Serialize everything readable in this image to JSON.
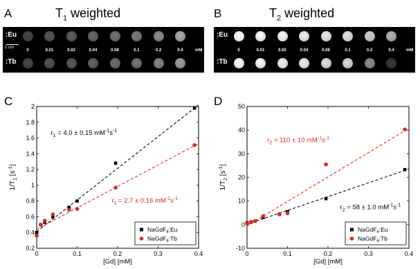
{
  "panels": {
    "A": {
      "letter": "A",
      "title_main": "T",
      "title_sub": "1",
      "title_rest": " weighted"
    },
    "B": {
      "letter": "B",
      "title_main": "T",
      "title_sub": "2",
      "title_rest": " weighted"
    },
    "C": {
      "letter": "C"
    },
    "D": {
      "letter": "D"
    }
  },
  "strip": {
    "row_labels": [
      ":Eu",
      ":Tb"
    ],
    "scale_label": "1 cm",
    "concentrations": [
      "0",
      "0.01",
      "0.02",
      "0.04",
      "0.08",
      "0.1",
      "0.2",
      "0.4"
    ],
    "unit": "mM",
    "t1_brightness": {
      "eu": [
        0.28,
        0.33,
        0.36,
        0.4,
        0.45,
        0.48,
        0.55,
        0.68
      ],
      "tb": [
        0.28,
        0.32,
        0.35,
        0.39,
        0.43,
        0.46,
        0.52,
        0.62
      ]
    },
    "t2_brightness": {
      "eu": [
        1.0,
        1.0,
        0.97,
        0.95,
        0.92,
        0.9,
        0.82,
        0.7
      ],
      "tb": [
        1.0,
        0.98,
        0.95,
        0.93,
        0.88,
        0.85,
        0.55,
        0.22
      ]
    }
  },
  "chart_data": [
    {
      "id": "C",
      "type": "scatter",
      "xlabel": "[Gd] [mM]",
      "ylabel_main": "1/T",
      "ylabel_sub": "1",
      "ylabel_unit": " [s",
      "ylabel_sup": "-1",
      "ylabel_end": "]",
      "xlim": [
        0,
        0.4
      ],
      "ylim": [
        0.2,
        2.0
      ],
      "xticks": [
        "0",
        "0.1",
        "0.2",
        "0.3",
        "0.4"
      ],
      "xtick_values": [
        0,
        0.1,
        0.2,
        0.3,
        0.4
      ],
      "yticks": [
        "0.2",
        "0.4",
        "0.6",
        "0.8",
        "1",
        "1.2",
        "1.4",
        "1.6",
        "1.8",
        "2"
      ],
      "ytick_values": [
        0.2,
        0.4,
        0.6,
        0.8,
        1.0,
        1.2,
        1.4,
        1.6,
        1.8,
        2.0
      ],
      "legend_position": "bottom-right",
      "series": [
        {
          "name": "NaGdF4:Eu",
          "name_base": "NaGdF",
          "name_sub": "4",
          "name_rest": ":Eu",
          "color": "#000000",
          "marker": "square",
          "x": [
            0,
            0.01,
            0.02,
            0.04,
            0.08,
            0.1,
            0.195,
            0.39
          ],
          "y": [
            0.4,
            0.5,
            0.53,
            0.6,
            0.72,
            0.8,
            1.28,
            1.98
          ],
          "fit": {
            "x": [
              0,
              0.4
            ],
            "y": [
              0.41,
              2.02
            ]
          },
          "annotation": {
            "text_main": "r",
            "text_sub": "1",
            "text_rest": " = 4.0 ± 0.15 mM",
            "sup1": "-1",
            "mid": "s",
            "sup2": "-1",
            "ax": 0.035,
            "ay": 1.64
          }
        },
        {
          "name": "NaGdF4:Tb",
          "name_base": "NaGdF",
          "name_sub": "4",
          "name_rest": ":Tb",
          "color": "#d62728",
          "marker": "circle",
          "x": [
            0,
            0.01,
            0.02,
            0.04,
            0.08,
            0.1,
            0.195,
            0.39
          ],
          "y": [
            0.36,
            0.5,
            0.55,
            0.63,
            0.69,
            0.7,
            0.97,
            1.51
          ],
          "fit": {
            "x": [
              0,
              0.4
            ],
            "y": [
              0.44,
              1.53
            ]
          },
          "annotation": {
            "text_main": "r",
            "text_sub": "1",
            "text_rest": " = 2.7 ± 0.16 mM",
            "sup1": "-1",
            "mid": "s",
            "sup2": "-1",
            "ax": 0.185,
            "ay": 0.78
          }
        }
      ]
    },
    {
      "id": "D",
      "type": "scatter",
      "xlabel": "[Gd] [mM]",
      "ylabel_main": "1/T",
      "ylabel_sub": "2",
      "ylabel_unit": " [s",
      "ylabel_sup": "-1",
      "ylabel_end": "]",
      "xlim": [
        0,
        0.4
      ],
      "ylim": [
        -10,
        50
      ],
      "xticks": [
        "0",
        "0.1",
        "0.2",
        "0.3",
        "0.4"
      ],
      "xtick_values": [
        0,
        0.1,
        0.2,
        0.3,
        0.4
      ],
      "yticks": [
        "-10",
        "0",
        "10",
        "20",
        "30",
        "40",
        "50"
      ],
      "ytick_values": [
        -10,
        0,
        10,
        20,
        30,
        40,
        50
      ],
      "legend_position": "bottom-right",
      "series": [
        {
          "name": "NaGdF4:Eu",
          "name_base": "NaGdF",
          "name_sub": "4",
          "name_rest": ":Eu",
          "color": "#000000",
          "marker": "square",
          "x": [
            0,
            0.01,
            0.02,
            0.04,
            0.08,
            0.1,
            0.195,
            0.39
          ],
          "y": [
            0.8,
            1.2,
            1.5,
            3.0,
            4.3,
            5.5,
            11.0,
            23.3
          ],
          "fit": {
            "x": [
              0,
              0.4
            ],
            "y": [
              0.2,
              23.5
            ]
          },
          "annotation": {
            "text_main": "r",
            "text_sub": "2",
            "text_rest": " = 58 ± 1.0 mM",
            "sup1": "-1",
            "mid": "s",
            "sup2": "-1",
            "ax": 0.23,
            "ay": 6.5
          }
        },
        {
          "name": "NaGdF4:Tb",
          "name_base": "NaGdF",
          "name_sub": "4",
          "name_rest": ":Tb",
          "color": "#d62728",
          "marker": "circle",
          "x": [
            0,
            0.01,
            0.02,
            0.04,
            0.08,
            0.1,
            0.195,
            0.39
          ],
          "y": [
            0.5,
            1.0,
            1.6,
            3.6,
            4.5,
            4.8,
            25.5,
            40.3
          ],
          "fit": {
            "x": [
              0,
              0.4
            ],
            "y": [
              -0.5,
              40.8
            ]
          },
          "annotation": {
            "text_main": "r",
            "text_sub": "2",
            "text_rest": " = 110 ± 10 mM",
            "sup1": "-1",
            "mid": "s",
            "sup2": "-1",
            "ax": 0.05,
            "ay": 35.0
          }
        }
      ]
    }
  ]
}
